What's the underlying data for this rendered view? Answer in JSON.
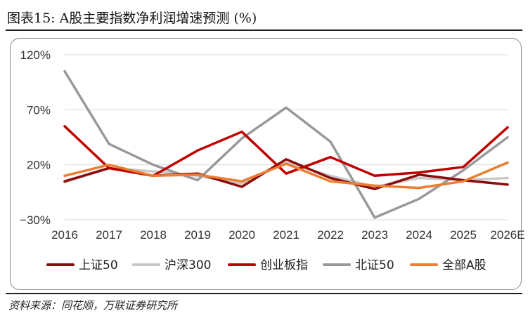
{
  "header": {
    "title": "图表15:  A股主要指数净利润增速预测 (%)"
  },
  "footer": {
    "source": "资料来源：同花顺，万联证券研究所"
  },
  "chart_data": {
    "type": "line",
    "categories": [
      "2016",
      "2017",
      "2018",
      "2019",
      "2020",
      "2021",
      "2022",
      "2023",
      "2024",
      "2025",
      "2026E"
    ],
    "yticks": [
      "120%",
      "70%",
      "20%",
      "−30%"
    ],
    "ytick_values": [
      120,
      70,
      20,
      -30
    ],
    "ylim": [
      -30,
      120
    ],
    "grid": "horizontal",
    "legend_position": "bottom",
    "series": [
      {
        "name": "上证50",
        "color": "#8B0A0A",
        "values": [
          5,
          17,
          10,
          12,
          0,
          25,
          8,
          -2,
          11,
          6,
          2
        ]
      },
      {
        "name": "沪深300",
        "color": "#C8C8C8",
        "values": [
          4,
          17,
          14,
          10,
          3,
          22,
          10,
          0,
          8,
          6,
          8
        ]
      },
      {
        "name": "创业板指",
        "color": "#C00000",
        "values": [
          55,
          17,
          10,
          33,
          50,
          12,
          27,
          10,
          13,
          18,
          54
        ]
      },
      {
        "name": "北证50",
        "color": "#999999",
        "values": [
          105,
          39,
          20,
          6,
          44,
          72,
          41,
          -28,
          -11,
          15,
          45
        ]
      },
      {
        "name": "全部A股",
        "color": "#ED7D31",
        "values": [
          10,
          20,
          10,
          11,
          5,
          21,
          5,
          1,
          -1,
          5,
          22
        ]
      }
    ]
  }
}
